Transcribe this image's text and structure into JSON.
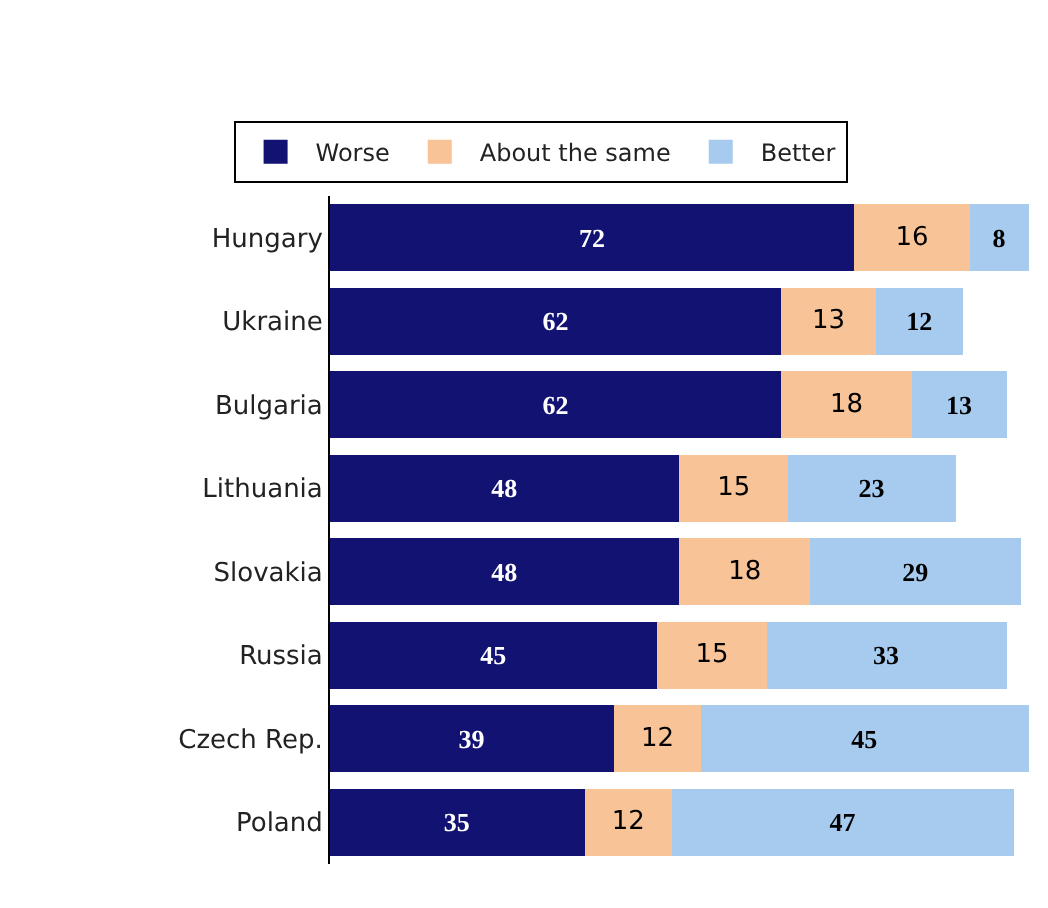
{
  "chart_data": {
    "type": "bar",
    "orientation": "horizontal",
    "stacked": true,
    "data_labels": true,
    "legend": "top",
    "tick_labels": "y",
    "categories": [
      "Hungary",
      "Ukraine",
      "Bulgaria",
      "Lithuania",
      "Slovakia",
      "Russia",
      "Czech Rep.",
      "Poland"
    ],
    "series": [
      {
        "name": "Worse",
        "color": "#121273",
        "values": [
          72,
          62,
          62,
          48,
          48,
          45,
          39,
          35
        ]
      },
      {
        "name": "About the same",
        "color": "#f8c396",
        "values": [
          16,
          13,
          18,
          15,
          18,
          15,
          12,
          12
        ]
      },
      {
        "name": "Better",
        "color": "#a6cbee",
        "values": [
          8,
          12,
          13,
          23,
          29,
          33,
          45,
          47
        ]
      }
    ]
  }
}
